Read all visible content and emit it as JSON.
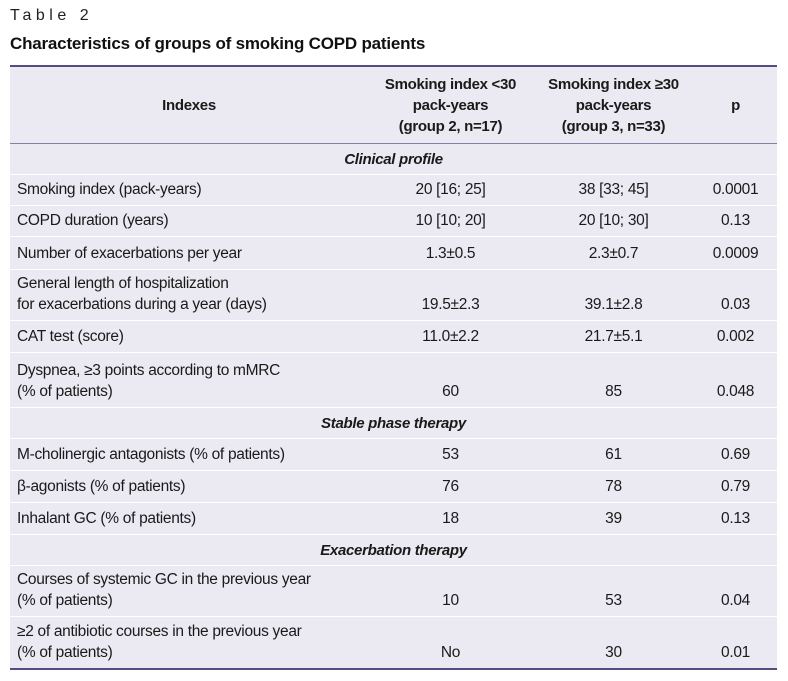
{
  "table_label": "Table 2",
  "table_title": "Characteristics of groups of smoking COPD patients",
  "header": {
    "col1": "Indexes",
    "col2_lines": [
      "Smoking index <30",
      "pack-years",
      "(group 2, n=17)"
    ],
    "col3_lines": [
      "Smoking index ≥30",
      "pack-years",
      "(group 3, n=33)"
    ],
    "col4": "p"
  },
  "sections": [
    {
      "title": "Clinical profile",
      "rows": [
        {
          "label_lines": [
            "Smoking index (pack-years)"
          ],
          "g2": "20 [16; 25]",
          "g3": "38 [33; 45]",
          "p": "0.0001"
        },
        {
          "label_lines": [
            "COPD duration (years)"
          ],
          "g2": "10 [10; 20]",
          "g3": "20 [10; 30]",
          "p": "0.13"
        },
        {
          "label_lines": [
            "Number of exacerbations per year"
          ],
          "g2": "1.3±0.5",
          "g3": "2.3±0.7",
          "p": "0.0009"
        },
        {
          "label_lines": [
            "General length of hospitalization",
            "for exacerbations during a year (days)"
          ],
          "g2": "19.5±2.3",
          "g3": "39.1±2.8",
          "p": "0.03"
        },
        {
          "label_lines": [
            "CAT test (score)"
          ],
          "g2": "11.0±2.2",
          "g3": "21.7±5.1",
          "p": "0.002"
        },
        {
          "label_lines": [
            "Dyspnea, ≥3 points according to mMRC",
            "(% of patients)"
          ],
          "g2": "60",
          "g3": "85",
          "p": "0.048"
        }
      ]
    },
    {
      "title": "Stable phase therapy",
      "rows": [
        {
          "label_lines": [
            "M-cholinergic antagonists (% of patients)"
          ],
          "g2": "53",
          "g3": "61",
          "p": "0.69"
        },
        {
          "label_lines": [
            "β-agonists (% of patients)"
          ],
          "g2": "76",
          "g3": "78",
          "p": "0.79"
        },
        {
          "label_lines": [
            "Inhalant GC (% of patients)"
          ],
          "g2": "18",
          "g3": "39",
          "p": "0.13"
        }
      ]
    },
    {
      "title": "Exacerbation therapy",
      "rows": [
        {
          "label_lines": [
            "Courses of systemic GC in the previous year",
            "(% of patients)"
          ],
          "g2": "10",
          "g3": "53",
          "p": "0.04"
        },
        {
          "label_lines": [
            "≥2 of antibiotic courses in the previous year",
            "(% of patients)"
          ],
          "g2": "No",
          "g3": "30",
          "p": "0.01"
        }
      ]
    }
  ]
}
